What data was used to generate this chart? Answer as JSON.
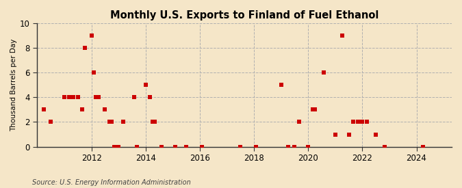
{
  "title": "Monthly U.S. Exports to Finland of Fuel Ethanol",
  "ylabel": "Thousand Barrels per Day",
  "source": "Source: U.S. Energy Information Administration",
  "background_color": "#f5e6c8",
  "marker_color": "#cc0000",
  "xlim": [
    2010.0,
    2025.3
  ],
  "ylim": [
    0,
    10
  ],
  "yticks": [
    0,
    2,
    4,
    6,
    8,
    10
  ],
  "xticks": [
    2012,
    2014,
    2016,
    2018,
    2020,
    2022,
    2024
  ],
  "points": [
    [
      2010.25,
      3
    ],
    [
      2010.5,
      2
    ],
    [
      2011.0,
      4
    ],
    [
      2011.1667,
      4
    ],
    [
      2011.3333,
      4
    ],
    [
      2011.5,
      4
    ],
    [
      2011.6667,
      3
    ],
    [
      2011.75,
      8
    ],
    [
      2012.0,
      9
    ],
    [
      2012.0833,
      6
    ],
    [
      2012.1667,
      4
    ],
    [
      2012.25,
      4
    ],
    [
      2012.5,
      3
    ],
    [
      2012.6667,
      2
    ],
    [
      2012.75,
      2
    ],
    [
      2012.8333,
      0
    ],
    [
      2013.0,
      0
    ],
    [
      2013.1667,
      2
    ],
    [
      2013.5833,
      4
    ],
    [
      2013.6667,
      0
    ],
    [
      2014.0,
      5
    ],
    [
      2014.1667,
      4
    ],
    [
      2014.25,
      2
    ],
    [
      2014.3333,
      2
    ],
    [
      2014.5833,
      0
    ],
    [
      2015.0833,
      0
    ],
    [
      2015.5,
      0
    ],
    [
      2016.0833,
      0
    ],
    [
      2017.5,
      0
    ],
    [
      2018.0833,
      0
    ],
    [
      2019.0,
      5
    ],
    [
      2019.25,
      0
    ],
    [
      2019.5,
      0
    ],
    [
      2019.6667,
      2
    ],
    [
      2020.0,
      0
    ],
    [
      2020.1667,
      3
    ],
    [
      2020.25,
      3
    ],
    [
      2020.5833,
      6
    ],
    [
      2021.0,
      1
    ],
    [
      2021.25,
      9
    ],
    [
      2021.5,
      1
    ],
    [
      2021.6667,
      2
    ],
    [
      2021.8333,
      2
    ],
    [
      2022.0,
      2
    ],
    [
      2022.1667,
      2
    ],
    [
      2022.5,
      1
    ],
    [
      2022.8333,
      0
    ],
    [
      2024.25,
      0
    ]
  ]
}
